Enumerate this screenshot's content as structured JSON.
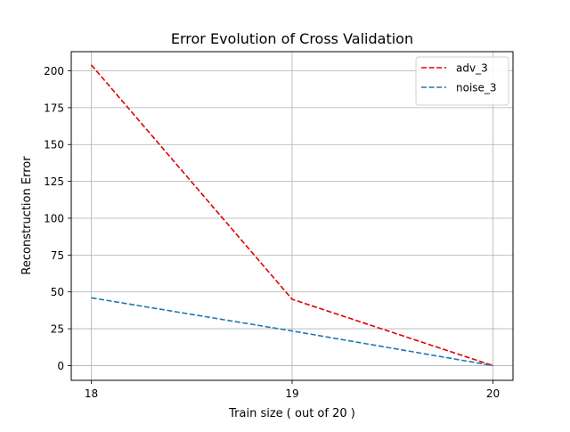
{
  "chart_data": {
    "type": "line",
    "title": "Error Evolution of Cross Validation",
    "xlabel": "Train size ( out of 20 )",
    "ylabel": "Reconstruction Error",
    "x": [
      18,
      19,
      20
    ],
    "xticks": [
      18,
      19,
      20
    ],
    "xlim": [
      17.9,
      20.1
    ],
    "yticks": [
      0,
      25,
      50,
      75,
      100,
      125,
      150,
      175,
      200
    ],
    "ylim": [
      -10,
      213
    ],
    "grid": true,
    "legend_position": "top-right",
    "series": [
      {
        "name": "adv_3",
        "values": [
          204,
          45,
          0
        ],
        "color": "#e00000",
        "style": "dashed"
      },
      {
        "name": "noise_3",
        "values": [
          46,
          23.5,
          0
        ],
        "color": "#1f77b4",
        "style": "dashed"
      }
    ]
  }
}
